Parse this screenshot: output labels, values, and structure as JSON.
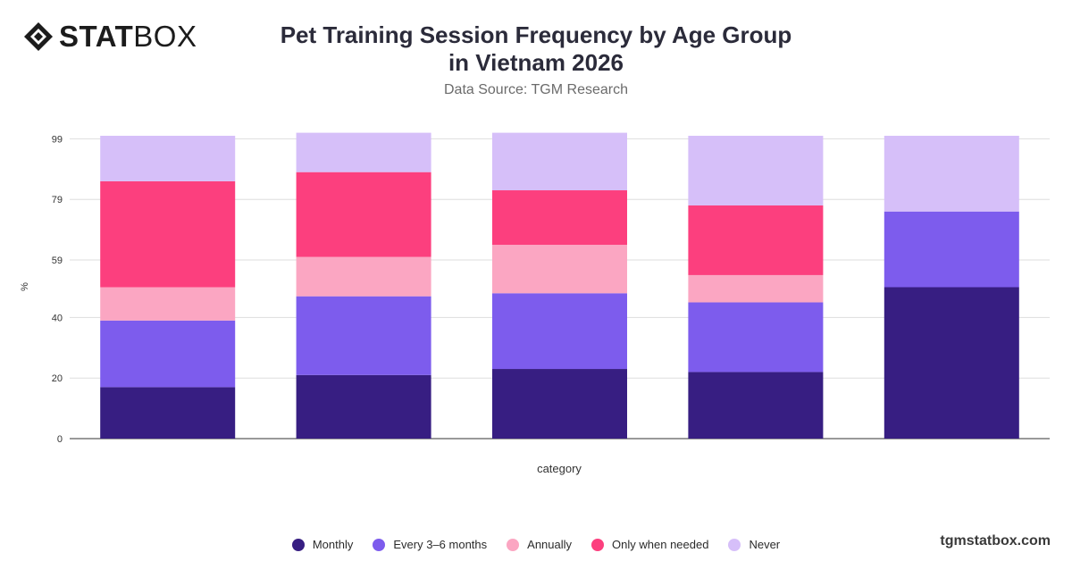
{
  "brand": {
    "logo_bold": "STAT",
    "logo_regular": "BOX",
    "site": "tgmstatbox.com"
  },
  "title": "Pet Training Session Frequency by Age Group in Vietnam 2026",
  "subtitle": "Data Source: TGM Research",
  "chart_data": {
    "type": "bar",
    "stacked": true,
    "categories": [
      "",
      "",
      "",
      "",
      ""
    ],
    "xlabel": "category",
    "ylabel": "%",
    "ylim": [
      0,
      100
    ],
    "yticks": [
      0,
      20,
      40,
      59,
      79,
      99
    ],
    "grid": true,
    "legend_position": "bottom",
    "series": [
      {
        "name": "Monthly",
        "color": "#371e82",
        "values": [
          17,
          21,
          23,
          22,
          50
        ]
      },
      {
        "name": "Every 3–6 months",
        "color": "#7d5ced",
        "values": [
          22,
          26,
          25,
          23,
          25
        ]
      },
      {
        "name": "Annually",
        "color": "#fba6c2",
        "values": [
          11,
          13,
          16,
          9,
          0
        ]
      },
      {
        "name": "Only when needed",
        "color": "#fc3f7e",
        "values": [
          35,
          28,
          18,
          23,
          0
        ]
      },
      {
        "name": "Never",
        "color": "#d6bff9",
        "values": [
          15,
          13,
          19,
          23,
          25
        ]
      }
    ]
  }
}
